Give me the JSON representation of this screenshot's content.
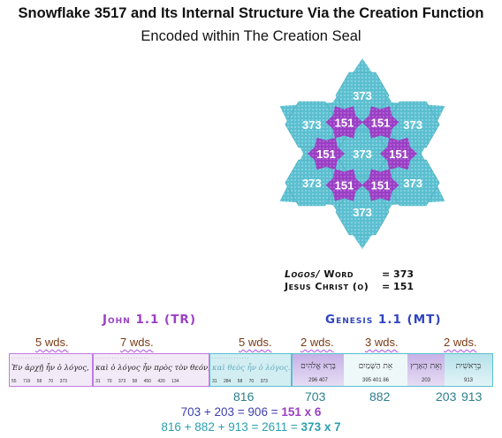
{
  "title": "Snowflake 3517 and Its Internal Structure Via the Creation Function",
  "subtitle": "Encoded within The Creation Seal",
  "snowflake": {
    "outer_value": "373",
    "inner_value": "151",
    "outer_color": "#5bbfd0",
    "inner_color": "#9a3fc4"
  },
  "legend": {
    "logos_prefix": "Logos/",
    "logos_word": "Word",
    "logos_value": "= 373",
    "jesus_label": "Jesus Christ (o)",
    "jesus_value": "= 151"
  },
  "john": {
    "heading": "John 1.1 (TR)",
    "heading_color": "#9a3fc4",
    "wds_a": "5 wds.",
    "wds_b": "7 wds.",
    "wds_c": "5 wds.",
    "greek_a": "Ἐν ἀρχῇ ἦν ὁ λόγος,",
    "greek_b": "καὶ ὁ λόγος ἦν πρὸς τὸν θεόν,",
    "greek_c": "καὶ θεὸς ἦν ὁ λόγος.",
    "nums_a": "55 719 58 70 373",
    "nums_b": "31 70 373 58 450 420 134",
    "nums_c": "31 284 58 70 373",
    "total_c": "816"
  },
  "genesis": {
    "heading": "Genesis 1.1 (MT)",
    "heading_color": "#2f44c0",
    "wds_a": "2 wds.",
    "wds_b": "3 wds.",
    "wds_c": "2 wds.",
    "heb_4": "בָּרָא אֱלֹהִים",
    "heb_3": "אֵת הַשָּׁמַיִם",
    "heb_2": "וְאֵת הָאָרֶץ",
    "heb_1": "בְּרֵאשִׁית",
    "nums_4": "296 407",
    "nums_3": "395 401 86",
    "nums_2": "203",
    "nums_1": "913",
    "total_4": "703",
    "total_3": "882",
    "total_2": "203",
    "total_1": "913"
  },
  "equations": {
    "eq1_plain": "703 + 203 = 906 = ",
    "eq1_bold": "151 x 6",
    "eq1_color": "#9a3fc4",
    "eq2_plain": "816 + 882 + 913 = 2611 = ",
    "eq2_bold": "373 x 7",
    "eq2_color": "#2b9fb0"
  }
}
